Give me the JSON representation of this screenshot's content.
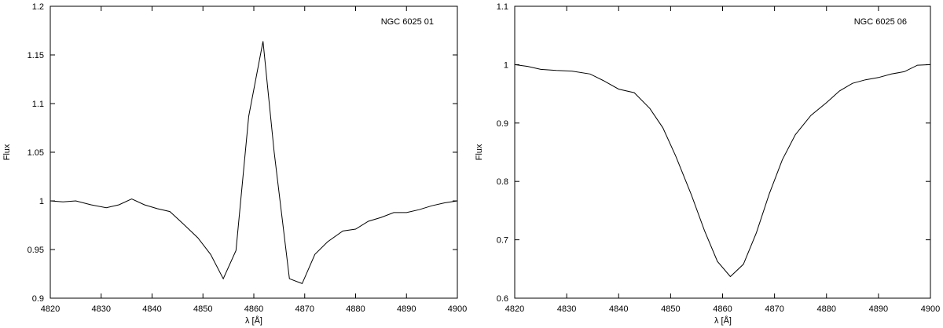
{
  "chart_data": [
    {
      "type": "line",
      "title": "NGC 6025 01",
      "xlabel": "λ [Å]",
      "ylabel": "Flux",
      "xlim": [
        4820,
        4900
      ],
      "ylim": [
        0.9,
        1.2
      ],
      "xticks": [
        4820,
        4830,
        4840,
        4850,
        4860,
        4870,
        4880,
        4890,
        4900
      ],
      "yticks": [
        0.9,
        0.95,
        1,
        1.05,
        1.1,
        1.15,
        1.2
      ],
      "ytick_labels": [
        "0.9",
        "0.95",
        "1",
        "1.05",
        "1.1",
        "1.15",
        "1.2"
      ],
      "legend_position": "top-right",
      "grid": false,
      "line_color": "#000000",
      "series": [
        {
          "x": [
            4820,
            4822.5,
            4825,
            4828,
            4831,
            4833.5,
            4836,
            4838.5,
            4841,
            4843.5,
            4846,
            4849,
            4851.5,
            4854,
            4856.5,
            4859,
            4861.8,
            4864,
            4867,
            4869.5,
            4872,
            4874.5,
            4877.5,
            4880,
            4882.5,
            4885,
            4887.5,
            4890,
            4892.5,
            4895,
            4897.5,
            4900
          ],
          "y": [
            1.0,
            0.999,
            1.0,
            0.996,
            0.993,
            0.996,
            1.002,
            0.996,
            0.992,
            0.989,
            0.977,
            0.962,
            0.945,
            0.92,
            0.949,
            1.087,
            1.164,
            1.05,
            0.92,
            0.915,
            0.945,
            0.958,
            0.969,
            0.971,
            0.979,
            0.983,
            0.988,
            0.988,
            0.991,
            0.995,
            0.998,
            1.0
          ]
        }
      ]
    },
    {
      "type": "line",
      "title": "NGC 6025 06",
      "xlabel": "λ [Å]",
      "ylabel": "Flux",
      "xlim": [
        4820,
        4900
      ],
      "ylim": [
        0.6,
        1.1
      ],
      "xticks": [
        4820,
        4830,
        4840,
        4850,
        4860,
        4870,
        4880,
        4890,
        4900
      ],
      "yticks": [
        0.6,
        0.7,
        0.8,
        0.9,
        1,
        1.1
      ],
      "ytick_labels": [
        "0.6",
        "0.7",
        "0.8",
        "0.9",
        "1",
        "1.1"
      ],
      "legend_position": "top-right",
      "grid": false,
      "line_color": "#000000",
      "series": [
        {
          "x": [
            4820,
            4822.5,
            4825,
            4828,
            4831,
            4834.5,
            4837,
            4840,
            4843,
            4846,
            4848.5,
            4851,
            4854,
            4856.5,
            4859,
            4861.5,
            4864,
            4866.5,
            4869,
            4871.5,
            4874,
            4877,
            4880,
            4882.5,
            4885,
            4887.5,
            4890,
            4892.5,
            4895,
            4897.5,
            4900
          ],
          "y": [
            1.0,
            0.997,
            0.992,
            0.99,
            0.989,
            0.984,
            0.973,
            0.958,
            0.952,
            0.925,
            0.892,
            0.843,
            0.777,
            0.716,
            0.663,
            0.637,
            0.658,
            0.712,
            0.779,
            0.837,
            0.88,
            0.913,
            0.935,
            0.955,
            0.968,
            0.974,
            0.978,
            0.984,
            0.988,
            0.999,
            1.0
          ]
        }
      ]
    }
  ]
}
